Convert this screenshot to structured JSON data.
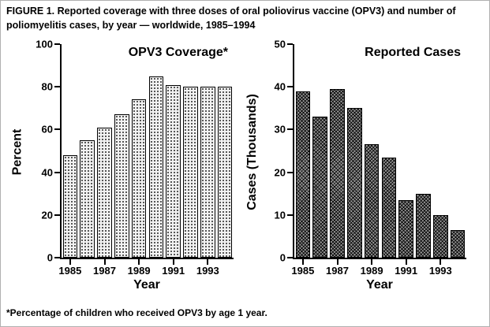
{
  "figure": {
    "title": "FIGURE 1. Reported coverage with three doses of oral poliovirus vaccine (OPV3) and number of poliomyelitis cases, by year — worldwide, 1985–1994",
    "footnote": "*Percentage of children who received OPV3 by age 1 year."
  },
  "chart_data": [
    {
      "type": "bar",
      "title": "OPV3 Coverage*",
      "xlabel": "Year",
      "ylabel": "Percent",
      "ylim": [
        0,
        100
      ],
      "yticks": [
        0,
        20,
        40,
        60,
        80,
        100
      ],
      "categories": [
        "1985",
        "1986",
        "1987",
        "1988",
        "1989",
        "1990",
        "1991",
        "1992",
        "1993",
        "1994"
      ],
      "xtick_labels": [
        "1985",
        "1987",
        "1989",
        "1991",
        "1993"
      ],
      "values": [
        48,
        55,
        61,
        67,
        74,
        85,
        81,
        80,
        80,
        80
      ],
      "grid": false,
      "legend": "none",
      "bar_style": "dot-stipple"
    },
    {
      "type": "bar",
      "title": "Reported Cases",
      "xlabel": "Year",
      "ylabel": "Cases (Thousands)",
      "ylim": [
        0,
        50
      ],
      "yticks": [
        0,
        10,
        20,
        30,
        40,
        50
      ],
      "categories": [
        "1985",
        "1986",
        "1987",
        "1988",
        "1989",
        "1990",
        "1991",
        "1992",
        "1993",
        "1994"
      ],
      "xtick_labels": [
        "1985",
        "1987",
        "1989",
        "1991",
        "1993"
      ],
      "values": [
        39,
        33,
        39.5,
        35,
        26.5,
        23.5,
        13.5,
        15,
        10,
        6.5
      ],
      "grid": false,
      "legend": "none",
      "bar_style": "dark-hatch"
    }
  ]
}
